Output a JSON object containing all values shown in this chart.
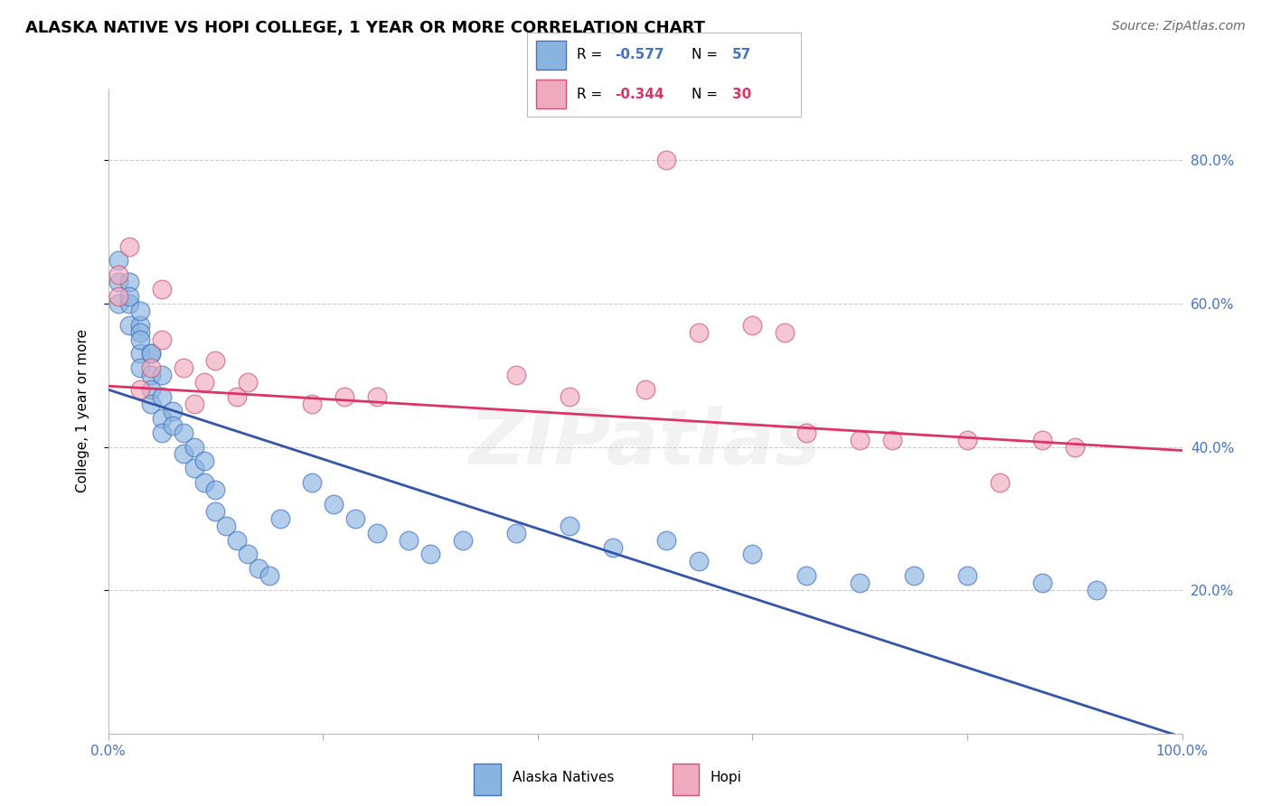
{
  "title": "ALASKA NATIVE VS HOPI COLLEGE, 1 YEAR OR MORE CORRELATION CHART",
  "source": "Source: ZipAtlas.com",
  "ylabel": "College, 1 year or more",
  "watermark": "ZIPatlas",
  "xlim": [
    0.0,
    1.0
  ],
  "ylim": [
    0.0,
    0.9
  ],
  "yticks": [
    0.2,
    0.4,
    0.6,
    0.8
  ],
  "ytick_labels": [
    "20.0%",
    "40.0%",
    "60.0%",
    "80.0%"
  ],
  "xticks": [
    0.0,
    0.2,
    0.4,
    0.6,
    0.8,
    1.0
  ],
  "xtick_labels": [
    "0.0%",
    "",
    "",
    "",
    "",
    "100.0%"
  ],
  "R_alaska": "-0.577",
  "N_alaska": "57",
  "R_hopi": "-0.344",
  "N_hopi": "30",
  "legend1_label": "Alaska Natives",
  "legend2_label": "Hopi",
  "alaska_x": [
    0.01,
    0.01,
    0.01,
    0.02,
    0.02,
    0.02,
    0.02,
    0.03,
    0.03,
    0.03,
    0.03,
    0.03,
    0.03,
    0.04,
    0.04,
    0.04,
    0.04,
    0.04,
    0.05,
    0.05,
    0.05,
    0.05,
    0.06,
    0.06,
    0.07,
    0.07,
    0.08,
    0.08,
    0.09,
    0.09,
    0.1,
    0.1,
    0.11,
    0.12,
    0.13,
    0.14,
    0.15,
    0.16,
    0.19,
    0.21,
    0.23,
    0.25,
    0.28,
    0.3,
    0.33,
    0.38,
    0.43,
    0.47,
    0.52,
    0.55,
    0.6,
    0.65,
    0.7,
    0.75,
    0.8,
    0.87,
    0.92
  ],
  "alaska_y": [
    0.63,
    0.66,
    0.6,
    0.6,
    0.63,
    0.57,
    0.61,
    0.57,
    0.59,
    0.53,
    0.56,
    0.51,
    0.55,
    0.53,
    0.5,
    0.48,
    0.53,
    0.46,
    0.47,
    0.5,
    0.44,
    0.42,
    0.45,
    0.43,
    0.42,
    0.39,
    0.4,
    0.37,
    0.35,
    0.38,
    0.34,
    0.31,
    0.29,
    0.27,
    0.25,
    0.23,
    0.22,
    0.3,
    0.35,
    0.32,
    0.3,
    0.28,
    0.27,
    0.25,
    0.27,
    0.28,
    0.29,
    0.26,
    0.27,
    0.24,
    0.25,
    0.22,
    0.21,
    0.22,
    0.22,
    0.21,
    0.2
  ],
  "hopi_x": [
    0.01,
    0.01,
    0.02,
    0.03,
    0.04,
    0.05,
    0.05,
    0.07,
    0.08,
    0.09,
    0.1,
    0.12,
    0.13,
    0.19,
    0.22,
    0.25,
    0.38,
    0.43,
    0.5,
    0.52,
    0.55,
    0.6,
    0.63,
    0.65,
    0.7,
    0.73,
    0.8,
    0.83,
    0.87,
    0.9
  ],
  "hopi_y": [
    0.64,
    0.61,
    0.68,
    0.48,
    0.51,
    0.55,
    0.62,
    0.51,
    0.46,
    0.49,
    0.52,
    0.47,
    0.49,
    0.46,
    0.47,
    0.47,
    0.5,
    0.47,
    0.48,
    0.8,
    0.56,
    0.57,
    0.56,
    0.42,
    0.41,
    0.41,
    0.41,
    0.35,
    0.41,
    0.4
  ],
  "alaska_line_x0": 0.0,
  "alaska_line_y0": 0.48,
  "alaska_line_x1": 1.0,
  "alaska_line_y1": -0.005,
  "hopi_line_x0": 0.0,
  "hopi_line_y0": 0.485,
  "hopi_line_x1": 1.0,
  "hopi_line_y1": 0.395,
  "blue_line_color": "#3355aa",
  "pink_line_color": "#dd3366",
  "blue_face": "#8ab4e0",
  "blue_edge": "#4472c4",
  "pink_face": "#f0aabf",
  "pink_edge": "#cc5577",
  "grid_color": "#cccccc",
  "blue_text": "#4472c4",
  "pink_text": "#dd3366",
  "bg_color": "#ffffff",
  "title_fontsize": 13,
  "tick_fontsize": 11,
  "ylabel_fontsize": 11,
  "source_fontsize": 10,
  "legend_fontsize": 11
}
